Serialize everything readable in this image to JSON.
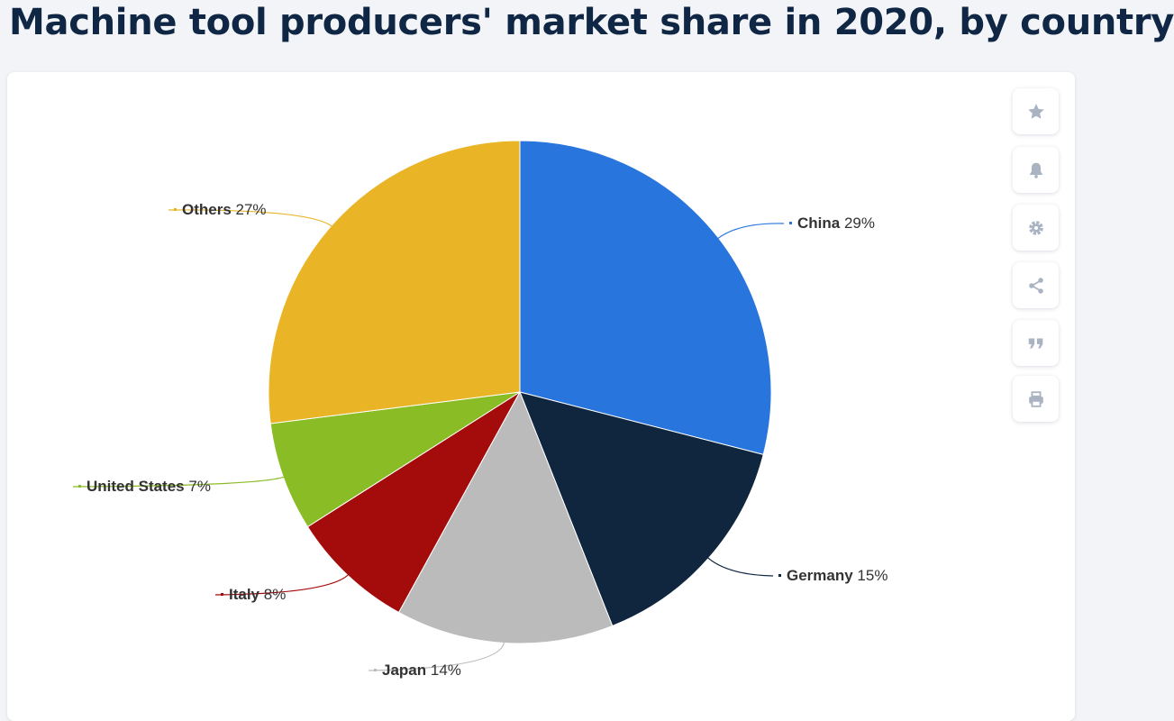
{
  "page": {
    "title": "Machine tool producers' market share in 2020, by country"
  },
  "toolbar": [
    {
      "name": "favorite-button",
      "icon": "star-icon"
    },
    {
      "name": "notification-button",
      "icon": "bell-icon"
    },
    {
      "name": "settings-button",
      "icon": "gear-icon"
    },
    {
      "name": "share-button",
      "icon": "share-icon"
    },
    {
      "name": "cite-button",
      "icon": "quote-icon"
    },
    {
      "name": "print-button",
      "icon": "print-icon"
    }
  ],
  "chart_data": {
    "type": "pie",
    "title": "Machine tool producers' market share in 2020, by country",
    "unit": "%",
    "start_angle_deg": 0,
    "direction": "clockwise",
    "slices": [
      {
        "label": "China",
        "value": 29,
        "color": "#2876dd"
      },
      {
        "label": "Germany",
        "value": 15,
        "color": "#10263f"
      },
      {
        "label": "Japan",
        "value": 14,
        "color": "#bbbbbb"
      },
      {
        "label": "Italy",
        "value": 8,
        "color": "#a40b0b"
      },
      {
        "label": "United States",
        "value": 7,
        "color": "#8abc26"
      },
      {
        "label": "Others",
        "value": 27,
        "color": "#e9b426"
      }
    ]
  }
}
